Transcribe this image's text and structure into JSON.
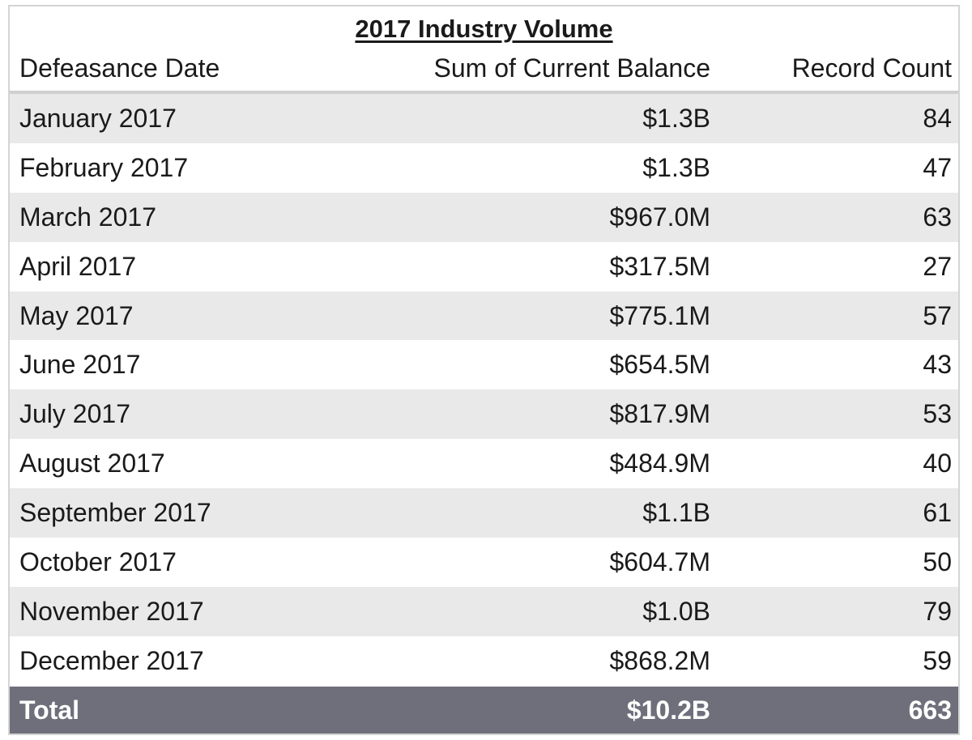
{
  "chart_data": {
    "type": "table",
    "title": "2017 Industry Volume",
    "columns": [
      "Defeasance Date",
      "Sum of Current Balance",
      "Record Count"
    ],
    "rows": [
      {
        "date": "January 2017",
        "balance": "$1.3B",
        "count": "84"
      },
      {
        "date": "February 2017",
        "balance": "$1.3B",
        "count": "47"
      },
      {
        "date": "March 2017",
        "balance": "$967.0M",
        "count": "63"
      },
      {
        "date": "April 2017",
        "balance": "$317.5M",
        "count": "27"
      },
      {
        "date": "May 2017",
        "balance": "$775.1M",
        "count": "57"
      },
      {
        "date": "June 2017",
        "balance": "$654.5M",
        "count": "43"
      },
      {
        "date": "July 2017",
        "balance": "$817.9M",
        "count": "53"
      },
      {
        "date": "August 2017",
        "balance": "$484.9M",
        "count": "40"
      },
      {
        "date": "September 2017",
        "balance": "$1.1B",
        "count": "61"
      },
      {
        "date": "October 2017",
        "balance": "$604.7M",
        "count": "50"
      },
      {
        "date": "November 2017",
        "balance": "$1.0B",
        "count": "79"
      },
      {
        "date": "December 2017",
        "balance": "$868.2M",
        "count": "59"
      }
    ],
    "total": {
      "label": "Total",
      "balance": "$10.2B",
      "count": "663"
    },
    "colors": {
      "row_shade": "#e9e9e9",
      "row_plain": "#ffffff",
      "total_background": "#6f6f7c",
      "total_text": "#ffffff"
    }
  }
}
